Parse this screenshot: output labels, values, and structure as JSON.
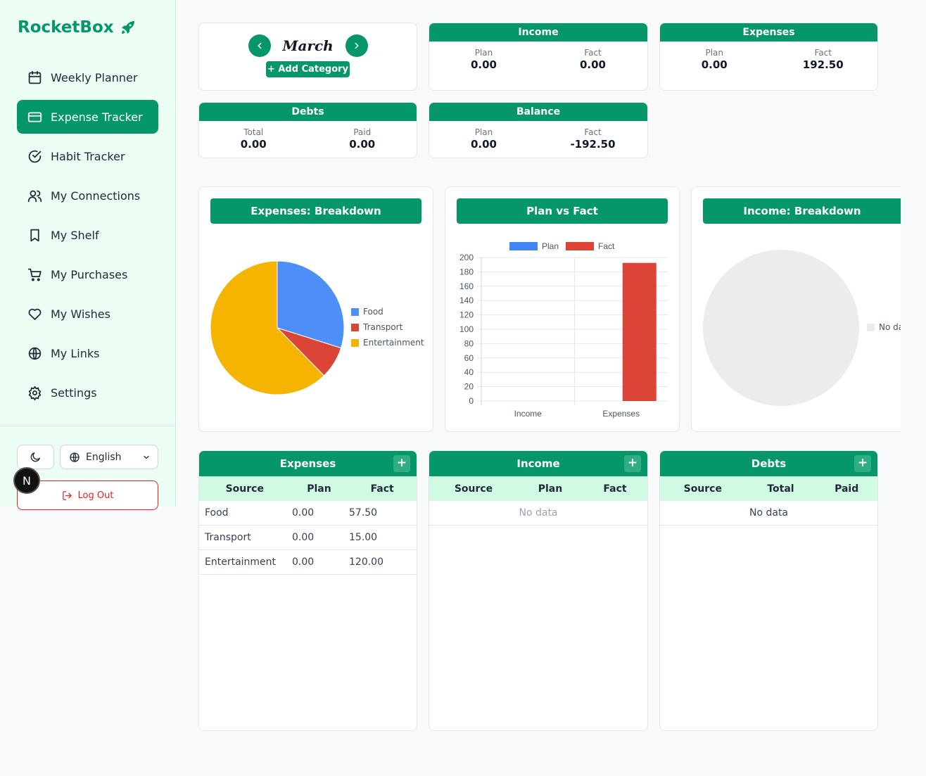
{
  "brand": {
    "name": "RocketBox"
  },
  "sidebar": {
    "items": [
      {
        "label": "Weekly Planner",
        "icon": "calendar-icon",
        "active": false
      },
      {
        "label": "Expense Tracker",
        "icon": "credit-card-icon",
        "active": true
      },
      {
        "label": "Habit Tracker",
        "icon": "check-circle-icon",
        "active": false
      },
      {
        "label": "My Connections",
        "icon": "users-icon",
        "active": false
      },
      {
        "label": "My Shelf",
        "icon": "bookmark-icon",
        "active": false
      },
      {
        "label": "My Purchases",
        "icon": "cart-icon",
        "active": false
      },
      {
        "label": "My Wishes",
        "icon": "heart-icon",
        "active": false
      },
      {
        "label": "My Links",
        "icon": "globe-icon",
        "active": false
      },
      {
        "label": "Settings",
        "icon": "gear-icon",
        "active": false
      }
    ],
    "language": "English",
    "logout": "Log Out",
    "badge": "N"
  },
  "month": {
    "name": "March",
    "add_category": "+ Add Category"
  },
  "summary": {
    "income": {
      "title": "Income",
      "plan_label": "Plan",
      "plan": "0.00",
      "fact_label": "Fact",
      "fact": "0.00"
    },
    "expenses": {
      "title": "Expenses",
      "plan_label": "Plan",
      "plan": "0.00",
      "fact_label": "Fact",
      "fact": "192.50"
    },
    "debts": {
      "title": "Debts",
      "total_label": "Total",
      "total": "0.00",
      "paid_label": "Paid",
      "paid": "0.00"
    },
    "balance": {
      "title": "Balance",
      "plan_label": "Plan",
      "plan": "0.00",
      "fact_label": "Fact",
      "fact": "-192.50"
    }
  },
  "colors": {
    "accent": "#059669",
    "plan": "#4285f4",
    "fact": "#db4437",
    "food": "#4e8ef7",
    "transport": "#db4437",
    "entertainment": "#f4b400",
    "empty": "#ececec"
  },
  "chart_data": [
    {
      "type": "pie",
      "title": "Expenses: Breakdown",
      "labels": [
        "Food",
        "Transport",
        "Entertainment"
      ],
      "values": [
        57.5,
        15.0,
        120.0
      ],
      "legend": "right"
    },
    {
      "type": "bar",
      "title": "Plan vs Fact",
      "categories": [
        "Income",
        "Expenses"
      ],
      "series": [
        {
          "name": "Plan",
          "values": [
            0,
            0
          ]
        },
        {
          "name": "Fact",
          "values": [
            0,
            192.5
          ]
        }
      ],
      "ylim": [
        0,
        200
      ],
      "yticks": [
        "200",
        "180",
        "160",
        "140",
        "120",
        "100",
        "80",
        "60",
        "40",
        "20",
        "0"
      ],
      "legend": "top",
      "grid": true
    },
    {
      "type": "pie",
      "title": "Income: Breakdown",
      "labels": [
        "No data"
      ],
      "values": [
        1
      ],
      "legend": "right"
    }
  ],
  "tables": {
    "expenses": {
      "title": "Expenses",
      "columns": [
        "Source",
        "Plan",
        "Fact"
      ],
      "rows": [
        {
          "source": "Food",
          "plan": "0.00",
          "fact": "57.50"
        },
        {
          "source": "Transport",
          "plan": "0.00",
          "fact": "15.00"
        },
        {
          "source": "Entertainment",
          "plan": "0.00",
          "fact": "120.00"
        }
      ]
    },
    "income": {
      "title": "Income",
      "columns": [
        "Source",
        "Plan",
        "Fact"
      ],
      "empty": "No data"
    },
    "debts": {
      "title": "Debts",
      "columns": [
        "Source",
        "Total",
        "Paid"
      ],
      "empty": "No data"
    }
  }
}
